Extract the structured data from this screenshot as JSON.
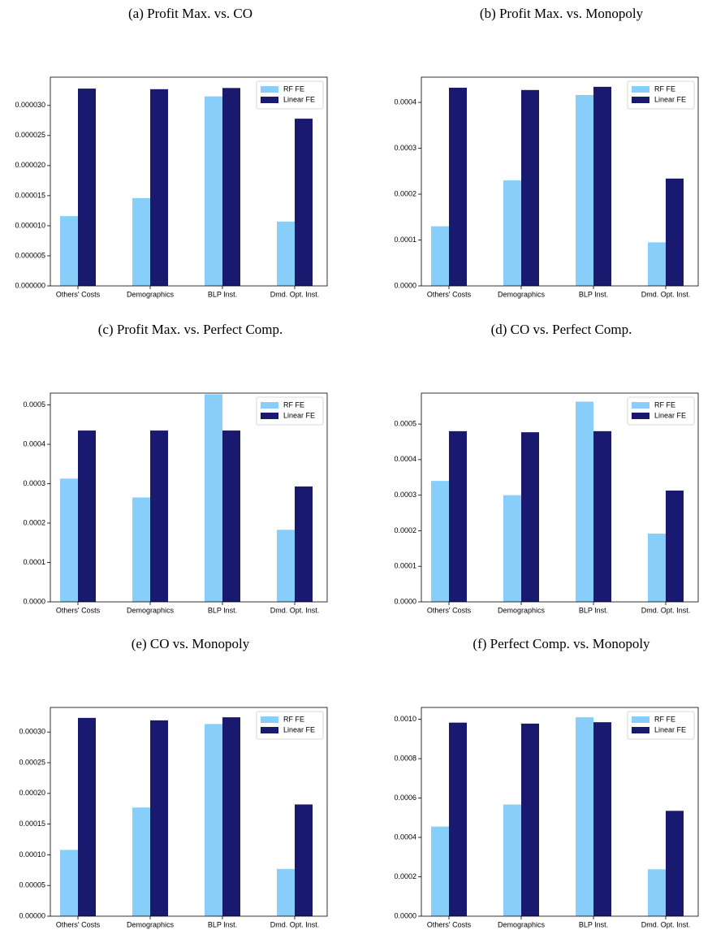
{
  "chart_data": [
    {
      "type": "bar",
      "title": "(a) Profit Max. vs. CO",
      "categories": [
        "Others' Costs",
        "Demographics",
        "BLP Inst.",
        "Dmd. Opt. Inst."
      ],
      "series": [
        {
          "name": "RF FE",
          "color": "#87cefa",
          "values": [
            1.16e-05,
            1.46e-05,
            3.15e-05,
            1.07e-05
          ]
        },
        {
          "name": "Linear FE",
          "color": "#191970",
          "values": [
            3.28e-05,
            3.27e-05,
            3.29e-05,
            2.78e-05
          ]
        }
      ],
      "ylim": [
        0,
        3.47e-05
      ],
      "yticks": [
        {
          "value": 0,
          "label": "0.000000"
        },
        {
          "value": 5e-06,
          "label": "0.000005"
        },
        {
          "value": 1e-05,
          "label": "0.000010"
        },
        {
          "value": 1.5e-05,
          "label": "0.000015"
        },
        {
          "value": 2e-05,
          "label": "0.000020"
        },
        {
          "value": 2.5e-05,
          "label": "0.000025"
        },
        {
          "value": 3e-05,
          "label": "0.000030"
        }
      ],
      "legend": "upper right"
    },
    {
      "type": "bar",
      "title": "(b) Profit Max. vs. Monopoly",
      "categories": [
        "Others' Costs",
        "Demographics",
        "BLP Inst.",
        "Dmd. Opt. Inst."
      ],
      "series": [
        {
          "name": "RF FE",
          "color": "#87cefa",
          "values": [
            0.00013,
            0.00023,
            0.000416,
            9.5e-05
          ]
        },
        {
          "name": "Linear FE",
          "color": "#191970",
          "values": [
            0.000432,
            0.000427,
            0.000434,
            0.000234
          ]
        }
      ],
      "ylim": [
        0,
        0.000455
      ],
      "yticks": [
        {
          "value": 0,
          "label": "0.0000"
        },
        {
          "value": 0.0001,
          "label": "0.0001"
        },
        {
          "value": 0.0002,
          "label": "0.0002"
        },
        {
          "value": 0.0003,
          "label": "0.0003"
        },
        {
          "value": 0.0004,
          "label": "0.0004"
        }
      ],
      "legend": "upper right"
    },
    {
      "type": "bar",
      "title": "(c) Profit Max. vs. Perfect Comp.",
      "categories": [
        "Others' Costs",
        "Demographics",
        "BLP Inst.",
        "Dmd. Opt. Inst."
      ],
      "series": [
        {
          "name": "RF FE",
          "color": "#87cefa",
          "values": [
            0.000313,
            0.000265,
            0.000527,
            0.000183
          ]
        },
        {
          "name": "Linear FE",
          "color": "#191970",
          "values": [
            0.000435,
            0.000435,
            0.000435,
            0.000293
          ]
        }
      ],
      "ylim": [
        0,
        0.00053
      ],
      "yticks": [
        {
          "value": 0,
          "label": "0.0000"
        },
        {
          "value": 0.0001,
          "label": "0.0001"
        },
        {
          "value": 0.0002,
          "label": "0.0002"
        },
        {
          "value": 0.0003,
          "label": "0.0003"
        },
        {
          "value": 0.0004,
          "label": "0.0004"
        },
        {
          "value": 0.0005,
          "label": "0.0005"
        }
      ],
      "legend": "upper right"
    },
    {
      "type": "bar",
      "title": "(d) CO vs. Perfect Comp.",
      "categories": [
        "Others' Costs",
        "Demographics",
        "BLP Inst.",
        "Dmd. Opt. Inst."
      ],
      "series": [
        {
          "name": "RF FE",
          "color": "#87cefa",
          "values": [
            0.00034,
            0.0003,
            0.000563,
            0.000192
          ]
        },
        {
          "name": "Linear FE",
          "color": "#191970",
          "values": [
            0.00048,
            0.000477,
            0.00048,
            0.000313
          ]
        }
      ],
      "ylim": [
        0,
        0.000587
      ],
      "yticks": [
        {
          "value": 0,
          "label": "0.0000"
        },
        {
          "value": 0.0001,
          "label": "0.0001"
        },
        {
          "value": 0.0002,
          "label": "0.0002"
        },
        {
          "value": 0.0003,
          "label": "0.0003"
        },
        {
          "value": 0.0004,
          "label": "0.0004"
        },
        {
          "value": 0.0005,
          "label": "0.0005"
        }
      ],
      "legend": "upper right"
    },
    {
      "type": "bar",
      "title": "(e) CO vs. Monopoly",
      "categories": [
        "Others' Costs",
        "Demographics",
        "BLP Inst.",
        "Dmd. Opt. Inst."
      ],
      "series": [
        {
          "name": "RF FE",
          "color": "#87cefa",
          "values": [
            0.000108,
            0.000177,
            0.000313,
            7.7e-05
          ]
        },
        {
          "name": "Linear FE",
          "color": "#191970",
          "values": [
            0.000323,
            0.000319,
            0.000324,
            0.000182
          ]
        }
      ],
      "ylim": [
        0,
        0.00034
      ],
      "yticks": [
        {
          "value": 0,
          "label": "0.00000"
        },
        {
          "value": 5e-05,
          "label": "0.00005"
        },
        {
          "value": 0.0001,
          "label": "0.00010"
        },
        {
          "value": 0.00015,
          "label": "0.00015"
        },
        {
          "value": 0.0002,
          "label": "0.00020"
        },
        {
          "value": 0.00025,
          "label": "0.00025"
        },
        {
          "value": 0.0003,
          "label": "0.00030"
        }
      ],
      "legend": "upper right"
    },
    {
      "type": "bar",
      "title": "(f) Perfect Comp. vs. Monopoly",
      "categories": [
        "Others' Costs",
        "Demographics",
        "BLP Inst.",
        "Dmd. Opt. Inst."
      ],
      "series": [
        {
          "name": "RF FE",
          "color": "#87cefa",
          "values": [
            0.000455,
            0.000567,
            0.00101,
            0.000238
          ]
        },
        {
          "name": "Linear FE",
          "color": "#191970",
          "values": [
            0.000983,
            0.000978,
            0.000985,
            0.000535
          ]
        }
      ],
      "ylim": [
        0,
        0.00106
      ],
      "yticks": [
        {
          "value": 0,
          "label": "0.0000"
        },
        {
          "value": 0.0002,
          "label": "0.0002"
        },
        {
          "value": 0.0004,
          "label": "0.0004"
        },
        {
          "value": 0.0006,
          "label": "0.0006"
        },
        {
          "value": 0.0008,
          "label": "0.0008"
        },
        {
          "value": 0.001,
          "label": "0.0010"
        }
      ],
      "legend": "upper right"
    }
  ]
}
